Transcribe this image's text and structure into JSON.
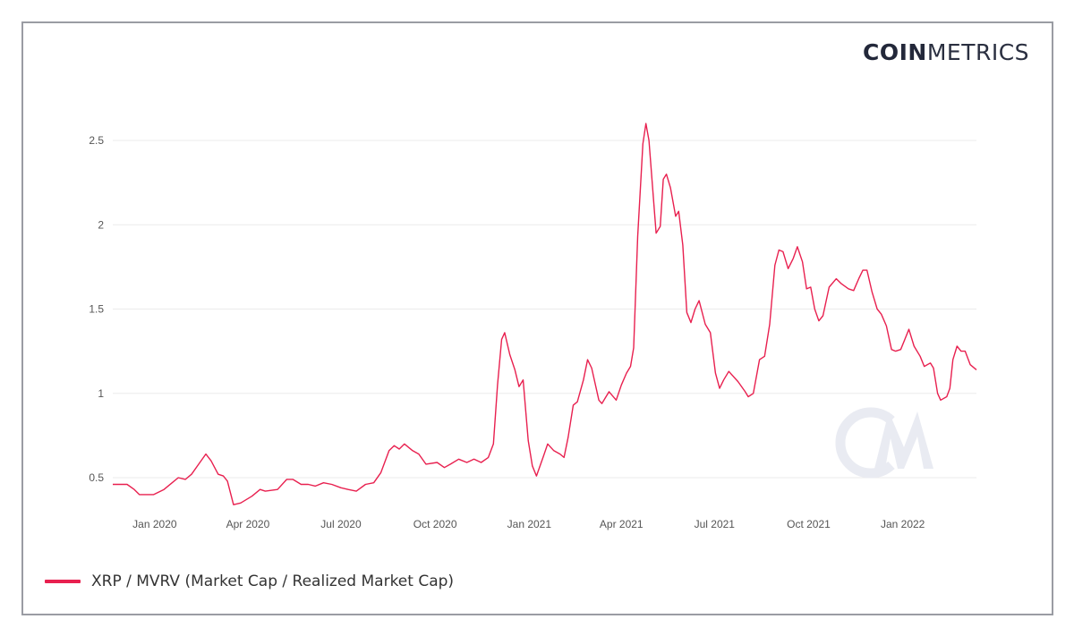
{
  "brand": {
    "logo_bold": "COIN",
    "logo_light": "METRICS",
    "watermark": "CM"
  },
  "legend": {
    "items": [
      {
        "label": "XRP / MVRV (Market Cap / Realized Market Cap)",
        "color": "#e8204f"
      }
    ]
  },
  "colors": {
    "line": "#e8204f",
    "grid": "#ebebeb",
    "frame": "#9a9ca3",
    "watermark": "#e9ebf2"
  },
  "chart_data": {
    "type": "line",
    "title": "",
    "xlabel": "",
    "ylabel": "",
    "ylim": [
      0.3,
      2.7
    ],
    "y_ticks": [
      0.5,
      1,
      1.5,
      2,
      2.5
    ],
    "y_tick_labels": [
      "0.5",
      "1",
      "1.5",
      "2",
      "2.5"
    ],
    "x_tick_labels": [
      "Jan 2020",
      "Apr 2020",
      "Jul 2020",
      "Oct 2020",
      "Jan 2021",
      "Apr 2021",
      "Jul 2021",
      "Oct 2021",
      "Jan 2022"
    ],
    "x_range": [
      "2019-11-21",
      "2022-03-14"
    ],
    "grid": "horizontal",
    "legend_position": "bottom-left",
    "series": [
      {
        "name": "XRP / MVRV (Market Cap / Realized Market Cap)",
        "color": "#e8204f",
        "points": [
          [
            "2019-11-21",
            0.46
          ],
          [
            "2019-12-05",
            0.46
          ],
          [
            "2019-12-12",
            0.43
          ],
          [
            "2019-12-17",
            0.4
          ],
          [
            "2019-12-31",
            0.4
          ],
          [
            "2020-01-10",
            0.43
          ],
          [
            "2020-01-18",
            0.47
          ],
          [
            "2020-01-24",
            0.5
          ],
          [
            "2020-01-31",
            0.49
          ],
          [
            "2020-02-06",
            0.52
          ],
          [
            "2020-02-13",
            0.58
          ],
          [
            "2020-02-20",
            0.64
          ],
          [
            "2020-02-25",
            0.6
          ],
          [
            "2020-03-03",
            0.52
          ],
          [
            "2020-03-08",
            0.51
          ],
          [
            "2020-03-12",
            0.48
          ],
          [
            "2020-03-18",
            0.34
          ],
          [
            "2020-03-25",
            0.35
          ],
          [
            "2020-04-05",
            0.39
          ],
          [
            "2020-04-13",
            0.43
          ],
          [
            "2020-04-18",
            0.42
          ],
          [
            "2020-04-30",
            0.43
          ],
          [
            "2020-05-09",
            0.49
          ],
          [
            "2020-05-15",
            0.49
          ],
          [
            "2020-05-23",
            0.46
          ],
          [
            "2020-05-30",
            0.46
          ],
          [
            "2020-06-06",
            0.45
          ],
          [
            "2020-06-14",
            0.47
          ],
          [
            "2020-06-22",
            0.46
          ],
          [
            "2020-07-01",
            0.44
          ],
          [
            "2020-07-08",
            0.43
          ],
          [
            "2020-07-16",
            0.42
          ],
          [
            "2020-07-25",
            0.46
          ],
          [
            "2020-08-02",
            0.47
          ],
          [
            "2020-08-09",
            0.53
          ],
          [
            "2020-08-17",
            0.66
          ],
          [
            "2020-08-22",
            0.69
          ],
          [
            "2020-08-27",
            0.67
          ],
          [
            "2020-09-01",
            0.7
          ],
          [
            "2020-09-09",
            0.66
          ],
          [
            "2020-09-15",
            0.64
          ],
          [
            "2020-09-22",
            0.58
          ],
          [
            "2020-10-03",
            0.59
          ],
          [
            "2020-10-10",
            0.56
          ],
          [
            "2020-10-16",
            0.58
          ],
          [
            "2020-10-24",
            0.61
          ],
          [
            "2020-11-01",
            0.59
          ],
          [
            "2020-11-08",
            0.61
          ],
          [
            "2020-11-15",
            0.59
          ],
          [
            "2020-11-22",
            0.62
          ],
          [
            "2020-11-27",
            0.7
          ],
          [
            "2020-12-01",
            1.05
          ],
          [
            "2020-12-05",
            1.32
          ],
          [
            "2020-12-08",
            1.36
          ],
          [
            "2020-12-13",
            1.23
          ],
          [
            "2020-12-18",
            1.14
          ],
          [
            "2020-12-22",
            1.04
          ],
          [
            "2020-12-26",
            1.08
          ],
          [
            "2020-12-31",
            0.72
          ],
          [
            "2021-01-04",
            0.57
          ],
          [
            "2021-01-08",
            0.51
          ],
          [
            "2021-01-15",
            0.63
          ],
          [
            "2021-01-19",
            0.7
          ],
          [
            "2021-01-25",
            0.66
          ],
          [
            "2021-01-31",
            0.64
          ],
          [
            "2021-02-04",
            0.62
          ],
          [
            "2021-02-08",
            0.74
          ],
          [
            "2021-02-13",
            0.93
          ],
          [
            "2021-02-17",
            0.95
          ],
          [
            "2021-02-23",
            1.08
          ],
          [
            "2021-02-27",
            1.2
          ],
          [
            "2021-03-03",
            1.15
          ],
          [
            "2021-03-10",
            0.96
          ],
          [
            "2021-03-13",
            0.94
          ],
          [
            "2021-03-20",
            1.01
          ],
          [
            "2021-03-27",
            0.96
          ],
          [
            "2021-04-01",
            1.05
          ],
          [
            "2021-04-06",
            1.12
          ],
          [
            "2021-04-10",
            1.16
          ],
          [
            "2021-04-13",
            1.27
          ],
          [
            "2021-04-17",
            1.93
          ],
          [
            "2021-04-22",
            2.48
          ],
          [
            "2021-04-25",
            2.6
          ],
          [
            "2021-04-28",
            2.5
          ],
          [
            "2021-05-05",
            1.95
          ],
          [
            "2021-05-09",
            1.99
          ],
          [
            "2021-05-12",
            2.27
          ],
          [
            "2021-05-15",
            2.3
          ],
          [
            "2021-05-19",
            2.22
          ],
          [
            "2021-05-24",
            2.05
          ],
          [
            "2021-05-27",
            2.08
          ],
          [
            "2021-05-31",
            1.88
          ],
          [
            "2021-06-04",
            1.48
          ],
          [
            "2021-06-08",
            1.42
          ],
          [
            "2021-06-12",
            1.5
          ],
          [
            "2021-06-16",
            1.55
          ],
          [
            "2021-06-22",
            1.41
          ],
          [
            "2021-06-27",
            1.36
          ],
          [
            "2021-07-02",
            1.12
          ],
          [
            "2021-07-06",
            1.03
          ],
          [
            "2021-07-10",
            1.08
          ],
          [
            "2021-07-15",
            1.13
          ],
          [
            "2021-07-24",
            1.07
          ],
          [
            "2021-07-31",
            1.01
          ],
          [
            "2021-08-03",
            0.98
          ],
          [
            "2021-08-08",
            1.0
          ],
          [
            "2021-08-14",
            1.2
          ],
          [
            "2021-08-19",
            1.22
          ],
          [
            "2021-08-24",
            1.41
          ],
          [
            "2021-08-29",
            1.76
          ],
          [
            "2021-09-02",
            1.85
          ],
          [
            "2021-09-06",
            1.84
          ],
          [
            "2021-09-11",
            1.74
          ],
          [
            "2021-09-16",
            1.8
          ],
          [
            "2021-09-20",
            1.87
          ],
          [
            "2021-09-25",
            1.78
          ],
          [
            "2021-09-29",
            1.62
          ],
          [
            "2021-10-03",
            1.63
          ],
          [
            "2021-10-07",
            1.5
          ],
          [
            "2021-10-11",
            1.43
          ],
          [
            "2021-10-15",
            1.46
          ],
          [
            "2021-10-21",
            1.63
          ],
          [
            "2021-10-28",
            1.68
          ],
          [
            "2021-11-02",
            1.65
          ],
          [
            "2021-11-09",
            1.62
          ],
          [
            "2021-11-14",
            1.61
          ],
          [
            "2021-11-19",
            1.68
          ],
          [
            "2021-11-23",
            1.73
          ],
          [
            "2021-11-27",
            1.73
          ],
          [
            "2021-12-02",
            1.6
          ],
          [
            "2021-12-07",
            1.5
          ],
          [
            "2021-12-11",
            1.47
          ],
          [
            "2021-12-16",
            1.4
          ],
          [
            "2021-12-21",
            1.26
          ],
          [
            "2021-12-25",
            1.25
          ],
          [
            "2021-12-30",
            1.26
          ],
          [
            "2022-01-03",
            1.32
          ],
          [
            "2022-01-07",
            1.38
          ],
          [
            "2022-01-12",
            1.28
          ],
          [
            "2022-01-18",
            1.22
          ],
          [
            "2022-01-22",
            1.16
          ],
          [
            "2022-01-28",
            1.18
          ],
          [
            "2022-01-31",
            1.15
          ],
          [
            "2022-02-04",
            1.0
          ],
          [
            "2022-02-07",
            0.96
          ],
          [
            "2022-02-13",
            0.98
          ],
          [
            "2022-02-16",
            1.03
          ],
          [
            "2022-02-19",
            1.2
          ],
          [
            "2022-02-23",
            1.28
          ],
          [
            "2022-02-27",
            1.25
          ],
          [
            "2022-03-03",
            1.25
          ],
          [
            "2022-03-08",
            1.17
          ],
          [
            "2022-03-14",
            1.14
          ]
        ]
      }
    ]
  }
}
